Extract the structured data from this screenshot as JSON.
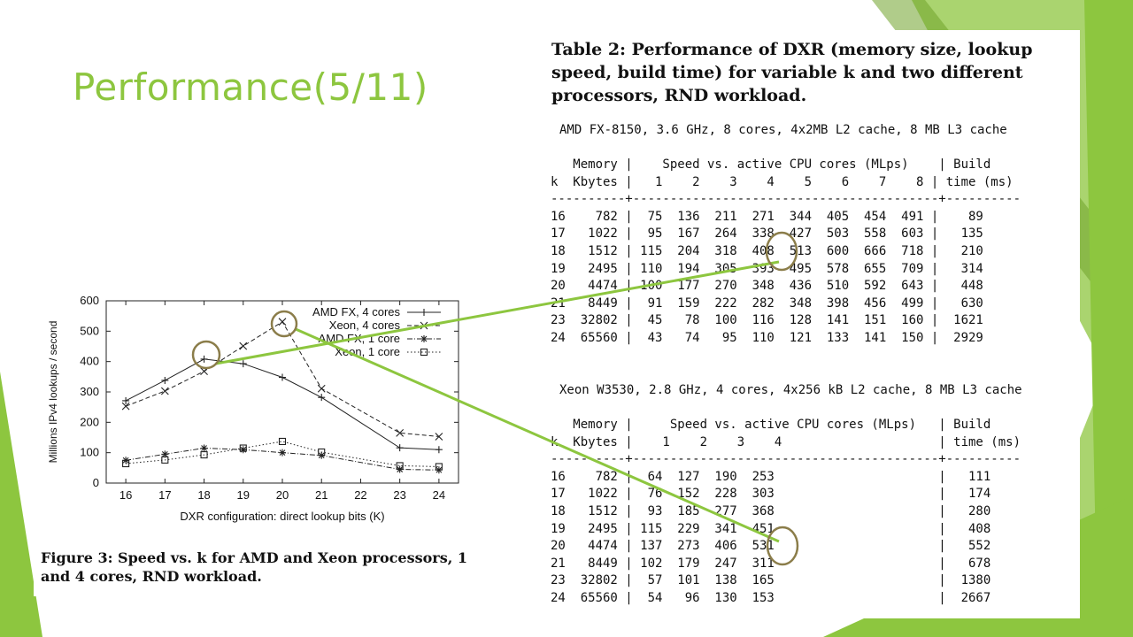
{
  "slide": {
    "title": "Performance(5/11)",
    "colors": {
      "accent": "#8dc63f",
      "accent_dark": "#6fa32a",
      "highlight_ring": "#8b7d4a"
    }
  },
  "figure": {
    "caption": "Figure 3: Speed vs. k for AMD and Xeon processors, 1 and 4 cores, RND workload.",
    "chart_data": {
      "type": "line",
      "xlabel": "DXR configuration: direct lookup bits (K)",
      "ylabel": "Millions IPv4 lookups / second",
      "x": [
        16,
        17,
        18,
        19,
        20,
        21,
        22,
        23,
        24
      ],
      "xticks": [
        "16",
        "17",
        "18",
        "19",
        "20",
        "21",
        "22",
        "23",
        "24"
      ],
      "yticks": [
        "0",
        "100",
        "200",
        "300",
        "400",
        "500",
        "600"
      ],
      "xlim": [
        15.5,
        24.5
      ],
      "ylim": [
        0,
        600
      ],
      "grid": false,
      "legend_position": "top-right",
      "series": [
        {
          "name": "AMD FX, 4 cores",
          "marker": "plus",
          "dash": "solid",
          "points": [
            [
              16,
              271
            ],
            [
              17,
              338
            ],
            [
              18,
              408
            ],
            [
              19,
              393
            ],
            [
              20,
              348
            ],
            [
              21,
              282
            ],
            [
              23,
              116
            ],
            [
              24,
              110
            ]
          ]
        },
        {
          "name": "Xeon, 4 cores",
          "marker": "cross",
          "dash": "dashed",
          "points": [
            [
              16,
              253
            ],
            [
              17,
              303
            ],
            [
              18,
              368
            ],
            [
              19,
              451
            ],
            [
              20,
              531
            ],
            [
              21,
              311
            ],
            [
              23,
              165
            ],
            [
              24,
              153
            ]
          ]
        },
        {
          "name": "AMD FX, 1 core",
          "marker": "star",
          "dash": "dashdot",
          "points": [
            [
              16,
              75
            ],
            [
              17,
              95
            ],
            [
              18,
              115
            ],
            [
              19,
              110
            ],
            [
              20,
              100
            ],
            [
              21,
              91
            ],
            [
              23,
              45
            ],
            [
              24,
              43
            ]
          ]
        },
        {
          "name": "Xeon, 1 core",
          "marker": "square",
          "dash": "dotted",
          "points": [
            [
              16,
              64
            ],
            [
              17,
              76
            ],
            [
              18,
              93
            ],
            [
              19,
              115
            ],
            [
              20,
              137
            ],
            [
              21,
              102
            ],
            [
              23,
              57
            ],
            [
              24,
              54
            ]
          ]
        }
      ]
    }
  },
  "table": {
    "caption": "Table 2: Performance of DXR (memory size, lookup speed, build time) for variable k and two different processors, RND workload.",
    "amd": {
      "config": "AMD FX-8150, 3.6 GHz, 8 cores, 4x2MB L2 cache, 8 MB L3 cache",
      "lines": [
        "   Memory |    Speed vs. active CPU cores (MLps)    | Build",
        "k  Kbytes |   1    2    3    4    5    6    7    8 | time (ms)",
        "----------+-----------------------------------------+----------",
        "16    782 |  75  136  211  271  344  405  454  491 |    89",
        "17   1022 |  95  167  264  338  427  503  558  603 |   135",
        "18   1512 | 115  204  318  408  513  600  666  718 |   210",
        "19   2495 | 110  194  305  393  495  578  655  709 |   314",
        "20   4474 | 100  177  270  348  436  510  592  643 |   448",
        "21   8449 |  91  159  222  282  348  398  456  499 |   630",
        "23  32802 |  45   78  100  116  128  141  151  160 |  1621",
        "24  65560 |  43   74   95  110  121  133  141  150 |  2929"
      ]
    },
    "xeon": {
      "config": "Xeon W3530, 2.8 GHz, 4 cores, 4x256 kB L2 cache, 8 MB L3 cache",
      "lines": [
        "   Memory |     Speed vs. active CPU cores (MLps)   | Build",
        "k  Kbytes |    1    2    3    4                     | time (ms)",
        "----------+-----------------------------------------+----------",
        "16    782 |  64  127  190  253                      |   111",
        "17   1022 |  76  152  228  303                      |   174",
        "18   1512 |  93  185  277  368                      |   280",
        "19   2495 | 115  229  341  451                      |   408",
        "20   4474 | 137  273  406  531                      |   552",
        "21   8449 | 102  179  247  311                      |   678",
        "23  32802 |  57  101  138  165                      |  1380",
        "24  65560 |  54   96  130  153                      |  2667"
      ]
    }
  }
}
